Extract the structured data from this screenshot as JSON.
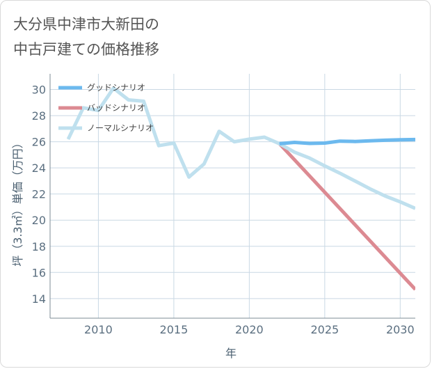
{
  "title_lines": [
    "大分県中津市大新田の",
    "中古戸建ての価格推移"
  ],
  "colors": {
    "good": "#6cb9ee",
    "bad": "#dc8a92",
    "normal": "#bfe0ee",
    "grid": "#c9d8e4",
    "axis": "#7d8b96",
    "tick": "#5b6f80"
  },
  "chart_data": {
    "type": "line",
    "title": "大分県中津市大新田の中古戸建ての価格推移",
    "xlabel": "年",
    "ylabel": "坪（3.3㎡）単価（万円）",
    "xlim": [
      2006.8,
      2031
    ],
    "ylim": [
      12.5,
      31.2
    ],
    "xticks": [
      2010,
      2015,
      2020,
      2025,
      2030
    ],
    "yticks": [
      14,
      16,
      18,
      20,
      22,
      24,
      26,
      28,
      30
    ],
    "legend_position": "top-left",
    "series": [
      {
        "name": "グッドシナリオ",
        "key": "good",
        "x": [
          2022,
          2023,
          2024,
          2025,
          2026,
          2027,
          2028,
          2029,
          2030,
          2031
        ],
        "y": [
          25.85,
          25.95,
          25.87,
          25.9,
          26.05,
          26.02,
          26.07,
          26.12,
          26.15,
          26.17
        ]
      },
      {
        "name": "バッドシナリオ",
        "key": "bad",
        "x": [
          2022,
          2031
        ],
        "y": [
          25.85,
          14.7
        ]
      },
      {
        "name": "ノーマルシナリオ",
        "key": "normal",
        "x": [
          2008,
          2009,
          2010,
          2011,
          2012,
          2013,
          2014,
          2015,
          2016,
          2017,
          2018,
          2019,
          2020,
          2021,
          2022,
          2023,
          2024,
          2025,
          2026,
          2027,
          2028,
          2029,
          2030,
          2031
        ],
        "y": [
          26.2,
          28.6,
          28.4,
          30.1,
          29.2,
          29.1,
          25.7,
          25.9,
          23.3,
          24.3,
          26.8,
          26.0,
          26.2,
          26.35,
          25.85,
          25.2,
          24.75,
          24.15,
          23.6,
          23.0,
          22.4,
          21.85,
          21.4,
          20.9
        ]
      }
    ]
  }
}
